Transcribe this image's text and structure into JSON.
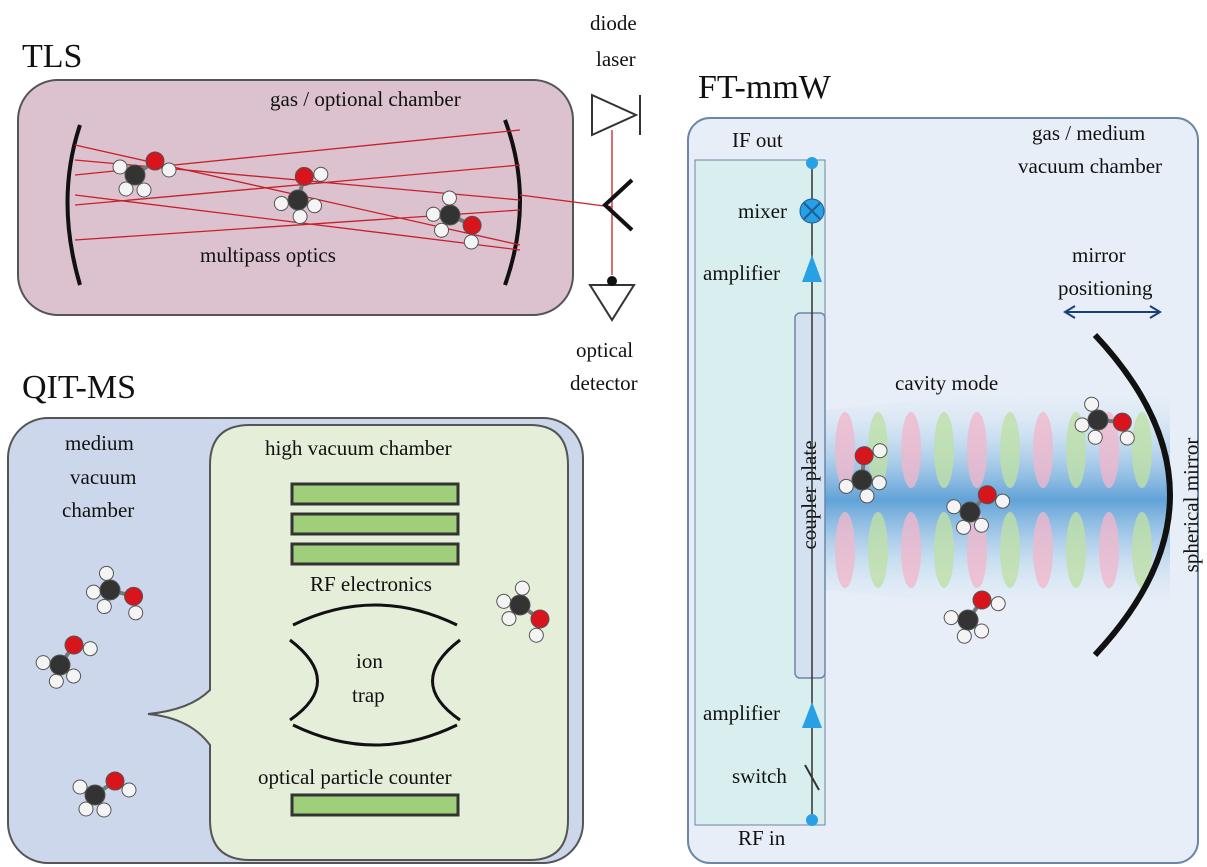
{
  "tls": {
    "title": "TLS",
    "chamber_label": "gas / optional chamber",
    "optics_label": "multipass optics",
    "laser_label": [
      "diode",
      "laser"
    ],
    "detector_label": [
      "optical",
      "detector"
    ]
  },
  "qit_ms": {
    "title": "QIT-MS",
    "outer_label": [
      "medium",
      "vacuum",
      "chamber"
    ],
    "inner_label": "high vacuum chamber",
    "electronics_label": "RF electronics",
    "trap_label": [
      "ion",
      "trap"
    ],
    "counter_label": "optical particle counter"
  },
  "ft_mmw": {
    "title": "FT-mmW",
    "chamber_label": [
      "gas / medium",
      "vacuum chamber"
    ],
    "if_out": "IF out",
    "mixer": "mixer",
    "amplifier_top": "amplifier",
    "coupler_label": "coupler plate",
    "cavity_label": "cavity mode",
    "positioning_label": [
      "mirror",
      "positioning"
    ],
    "mirror_label": "spherical mirror",
    "amplifier_bottom": "amplifier",
    "switch": "switch",
    "rf_in": "RF in"
  }
}
